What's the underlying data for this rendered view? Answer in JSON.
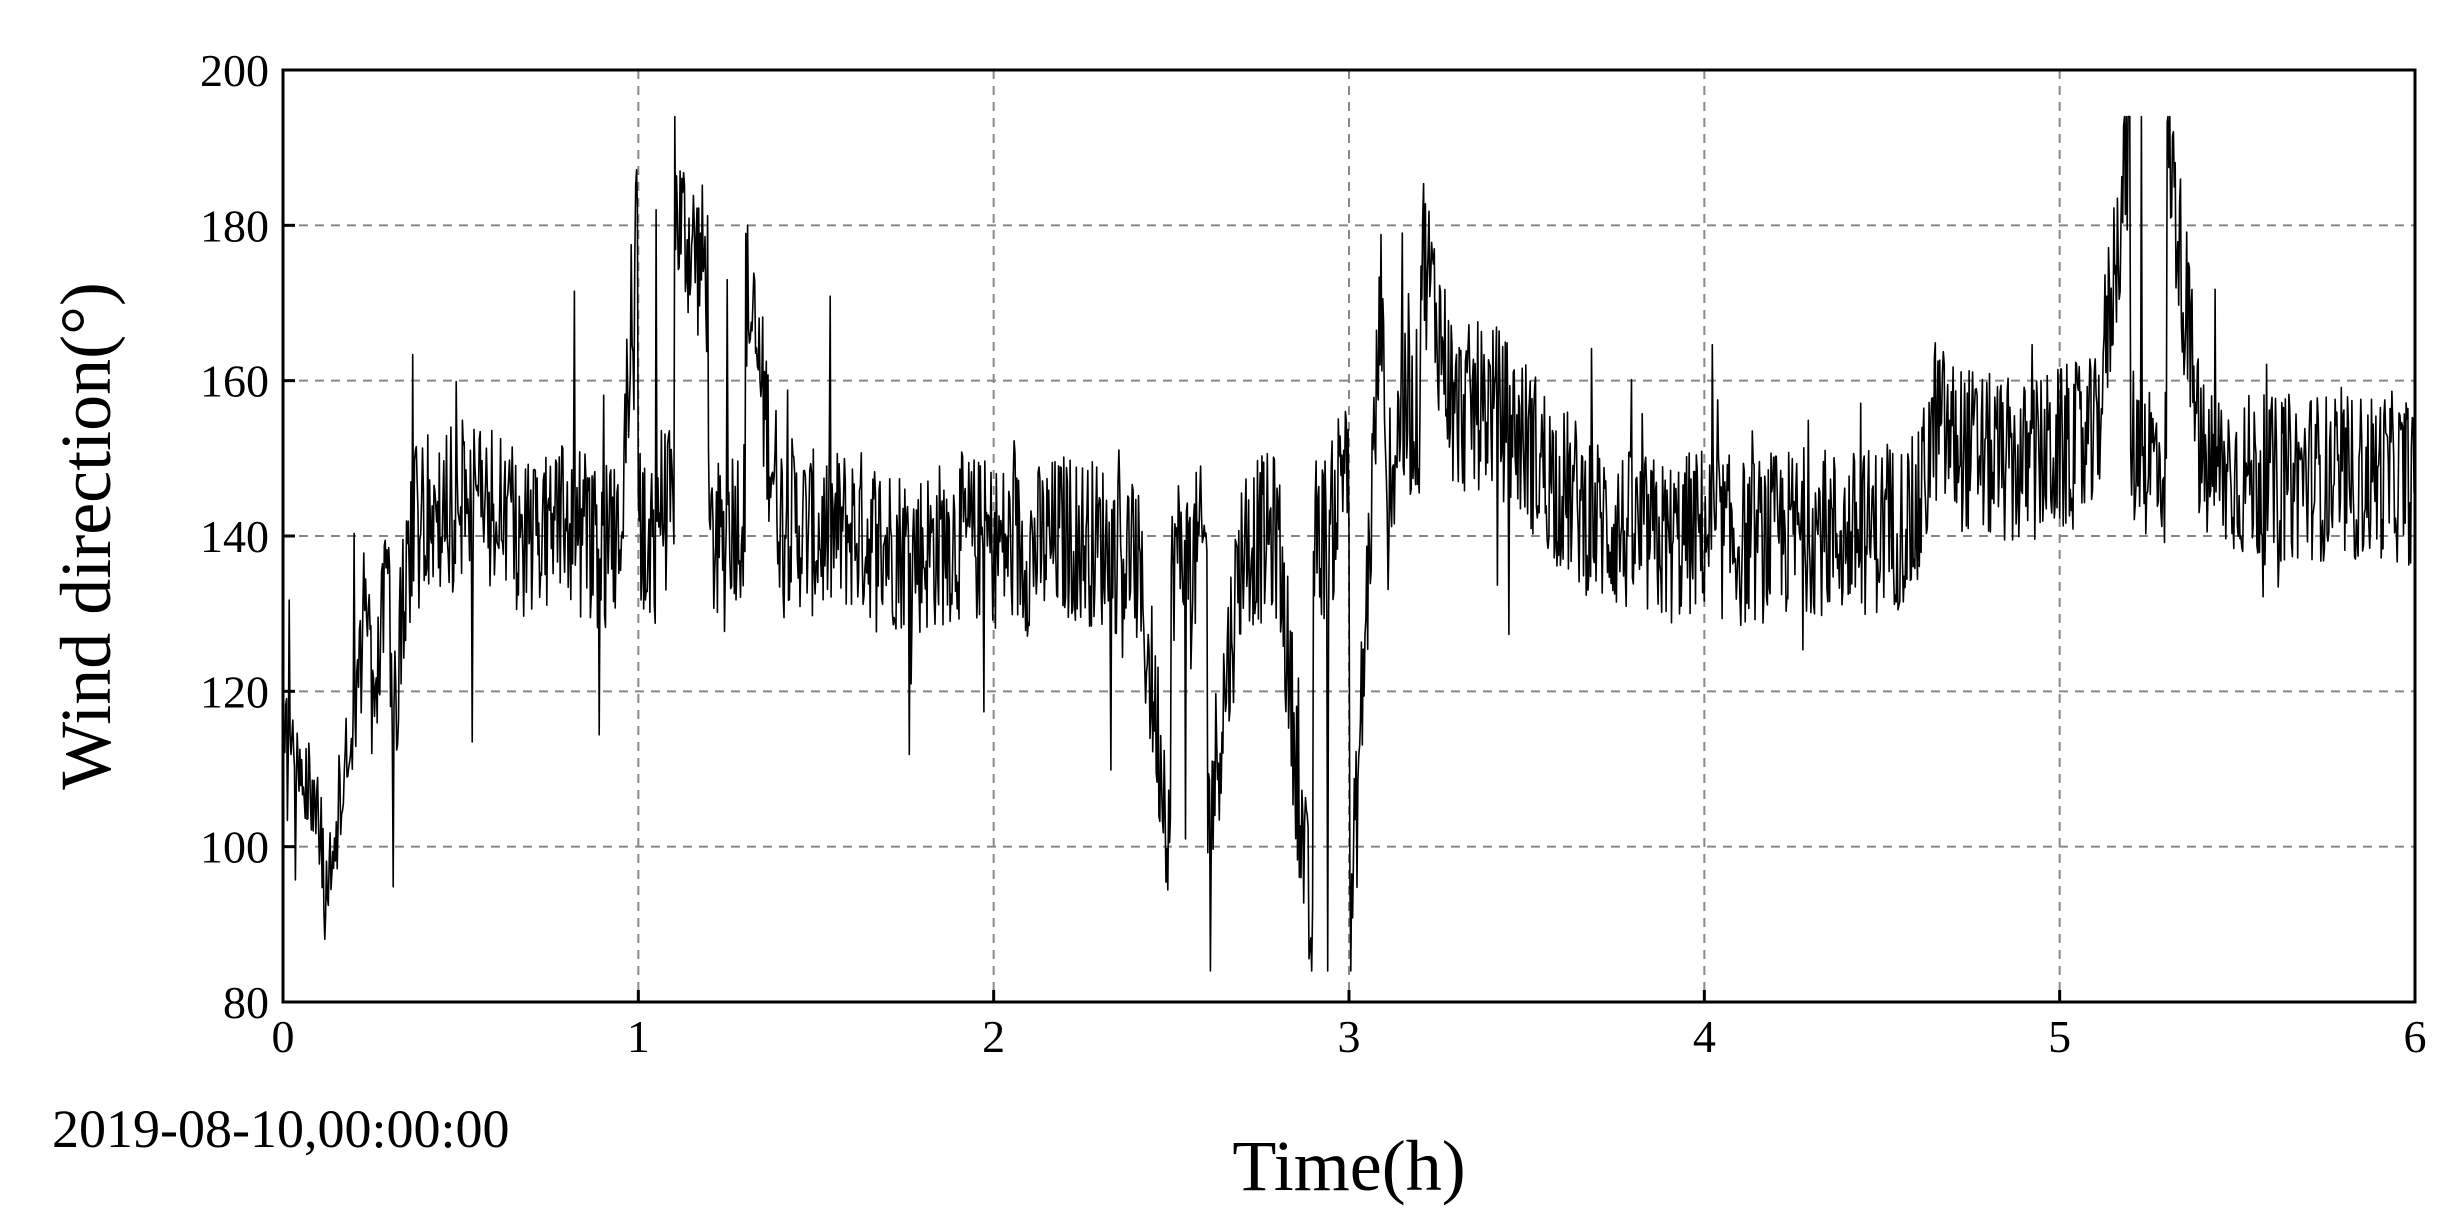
{
  "chart_data": {
    "type": "line",
    "xlabel": "Time(h)",
    "ylabel": "Wind direction(°)",
    "start_label": "2019-08-10,00:00:00",
    "xlim": [
      0,
      6
    ],
    "ylim": [
      80,
      200
    ],
    "x_ticks": [
      "0",
      "1",
      "2",
      "3",
      "4",
      "5",
      "6"
    ],
    "y_ticks": [
      "80",
      "100",
      "120",
      "140",
      "160",
      "180",
      "200"
    ],
    "grid": true,
    "line_color": "#000000",
    "series": [
      {
        "x": [
          0,
          0.05,
          0.1,
          0.12,
          0.15,
          0.2,
          0.25,
          0.3,
          0.35,
          0.4,
          0.5,
          0.6,
          0.7,
          0.8,
          0.9,
          0.95,
          1.0,
          1.05,
          1.1,
          1.2,
          1.25,
          1.3,
          1.4,
          1.5,
          1.6,
          1.7,
          1.8,
          1.9,
          2.0,
          2.1,
          2.2,
          2.3,
          2.4,
          2.5,
          2.54,
          2.6,
          2.7,
          2.8,
          2.9,
          2.94,
          3.0,
          3.1,
          3.15,
          3.2,
          3.3,
          3.4,
          3.5,
          3.6,
          3.7,
          3.8,
          3.9,
          4.0,
          4.1,
          4.2,
          4.3,
          4.4,
          4.5,
          4.6,
          4.65,
          4.7,
          4.8,
          4.9,
          5.0,
          5.1,
          5.2,
          5.23,
          5.3,
          5.4,
          5.5,
          5.6,
          5.7,
          5.8,
          5.9,
          6.0
        ],
        "values": [
          118,
          112,
          106,
          91,
          103,
          116,
          112,
          136,
          139,
          142,
          144,
          143,
          140,
          142,
          138,
          141,
          145,
          182,
          139,
          142,
          173,
          138,
          143,
          140,
          141,
          139,
          138,
          140,
          139,
          138,
          140,
          139,
          137,
          136,
          101,
          138,
          139,
          140,
          138,
          84,
          140,
          155,
          179,
          158,
          156,
          157,
          152,
          146,
          142,
          140,
          139,
          141,
          139,
          140,
          141,
          140,
          141,
          142,
          155,
          152,
          150,
          149,
          151,
          152,
          151,
          194,
          150,
          149,
          148,
          147,
          148,
          147,
          148,
          147
        ]
      }
    ]
  }
}
